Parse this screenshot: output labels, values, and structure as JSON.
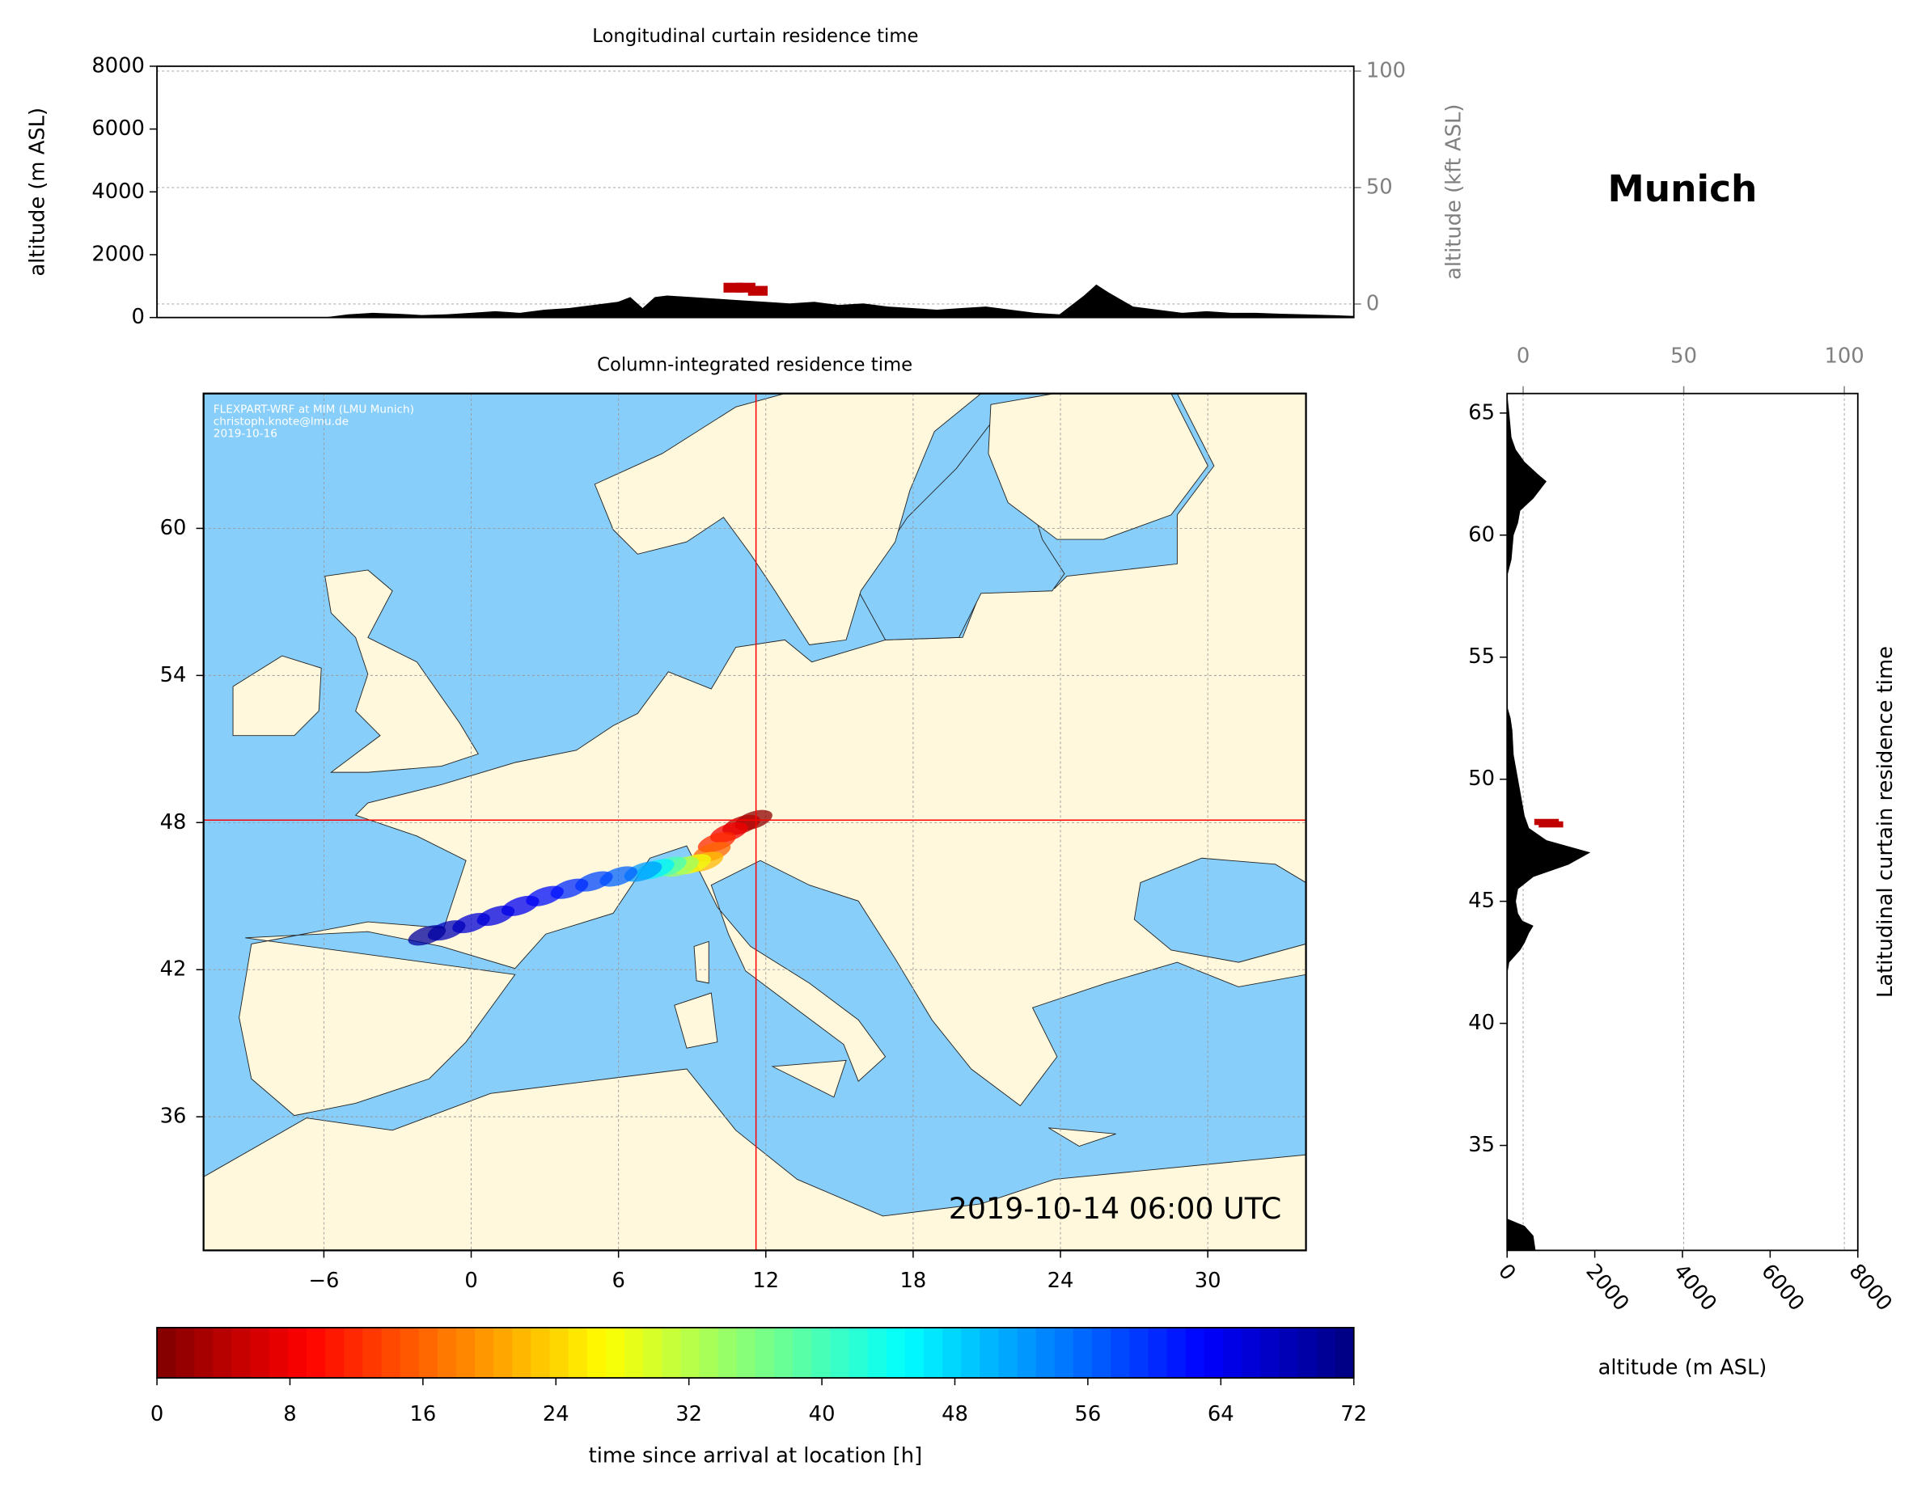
{
  "location": "Munich",
  "chart_data": [
    {
      "type": "area",
      "title": "Longitudinal curtain residence time",
      "ylabel": "altitude (m ASL)",
      "y2label": "altitude (kft ASL)",
      "xlim": [
        -12.8,
        36
      ],
      "ylim": [
        0,
        8000
      ],
      "yticks": [
        0,
        2000,
        4000,
        6000,
        8000
      ],
      "y2lim": [
        -5.8,
        102.1
      ],
      "y2ticks": [
        0,
        50,
        100
      ],
      "grid": true,
      "series": [
        {
          "color": "#000000",
          "x": [
            -12.8,
            -6,
            -5,
            -4,
            -3,
            -2,
            -1,
            0,
            1,
            2,
            3,
            4,
            5,
            6,
            6.5,
            7,
            7.5,
            8,
            9,
            10,
            11,
            12,
            13,
            14,
            15,
            16,
            17,
            18,
            19,
            20,
            21,
            22,
            23,
            24,
            25,
            25.5,
            26,
            27,
            28,
            29,
            30,
            31,
            32,
            33,
            34,
            35,
            36
          ],
          "values": [
            0,
            0,
            100,
            150,
            120,
            80,
            100,
            150,
            200,
            150,
            250,
            300,
            400,
            500,
            650,
            300,
            650,
            700,
            650,
            600,
            550,
            500,
            450,
            500,
            400,
            450,
            350,
            300,
            250,
            300,
            350,
            250,
            150,
            100,
            700,
            1050,
            800,
            350,
            250,
            150,
            200,
            150,
            150,
            120,
            100,
            80,
            50
          ]
        }
      ],
      "residence": {
        "color": "#c00000",
        "x": [
          10.7,
          11.2,
          11.7
        ],
        "values": [
          950,
          950,
          850
        ]
      }
    },
    {
      "type": "map",
      "title": "Column-integrated residence time",
      "xlim": [
        -10.9,
        34
      ],
      "ylim": [
        30.55,
        65.5
      ],
      "xticks": [
        {
          "value": -6,
          "label": "−6"
        },
        0,
        6,
        12,
        18,
        24,
        30
      ],
      "yticks": [
        36,
        42,
        48,
        54,
        60
      ],
      "grid": true,
      "annotations": [
        "FLEXPART-WRF at MIM (LMU Munich)",
        "christoph.knote@lmu.de",
        "2019-10-16"
      ],
      "timestamp": "2019-10-14 06:00 UTC",
      "marker": {
        "x": 11.6,
        "y": 48.1,
        "color": "#ff0000"
      },
      "plume": {
        "x": [
          11.5,
          11.0,
          10.5,
          10.0,
          9.8,
          9.5,
          9.0,
          8.5,
          8.0,
          7.5,
          7.0,
          6.0,
          5.0,
          4.0,
          3.0,
          2.0,
          1.0,
          0.0,
          -1.0,
          -1.8
        ],
        "y": [
          48.1,
          47.9,
          47.6,
          47.2,
          46.8,
          46.4,
          46.3,
          46.2,
          46.2,
          46.1,
          46.0,
          45.8,
          45.6,
          45.3,
          45.0,
          44.6,
          44.2,
          43.9,
          43.6,
          43.4
        ],
        "values": [
          1,
          4,
          8,
          12,
          16,
          22,
          28,
          34,
          40,
          46,
          52,
          56,
          58,
          60,
          62,
          64,
          65,
          66,
          68,
          70
        ]
      }
    },
    {
      "type": "colorbar",
      "label": "time since arrival at location [h]",
      "colormap": "jet_r",
      "lim": [
        0,
        72
      ],
      "ticks": [
        0,
        8,
        16,
        24,
        32,
        40,
        48,
        56,
        64,
        72
      ]
    },
    {
      "type": "area_h",
      "title": "Latitudinal curtain residence time",
      "xlabel": "altitude (m ASL)",
      "xlim": [
        0,
        8000
      ],
      "xticks": [
        0,
        2000,
        4000,
        6000,
        8000
      ],
      "x2lim": [
        -5.0,
        104.2
      ],
      "x2ticks": [
        0,
        50,
        100
      ],
      "ylim": [
        30.7,
        65.8
      ],
      "yticks": [
        35,
        40,
        45,
        50,
        55,
        60,
        65
      ],
      "grid": true,
      "series": [
        {
          "color": "#000000",
          "y": [
            65.8,
            65,
            64,
            63.5,
            63,
            62.5,
            62.2,
            61.5,
            61,
            60.5,
            60,
            59,
            58.3,
            58,
            53,
            52.5,
            52,
            51,
            50,
            49.5,
            49,
            48.5,
            48,
            47.5,
            47,
            46.5,
            46,
            45.5,
            45,
            44.5,
            44.2,
            44,
            43.7,
            43.3,
            43,
            42.5,
            42,
            32,
            31.7,
            31.3,
            30.7
          ],
          "values": [
            0,
            50,
            100,
            200,
            400,
            700,
            900,
            600,
            300,
            250,
            150,
            100,
            0,
            0,
            0,
            80,
            120,
            150,
            250,
            300,
            350,
            400,
            500,
            900,
            1900,
            1400,
            600,
            250,
            200,
            250,
            350,
            600,
            500,
            400,
            300,
            50,
            0,
            0,
            400,
            600,
            650
          ]
        }
      ],
      "residence": {
        "color": "#c00000",
        "y": [
          48.25,
          48.15
        ],
        "values": [
          900,
          1000
        ]
      }
    }
  ]
}
